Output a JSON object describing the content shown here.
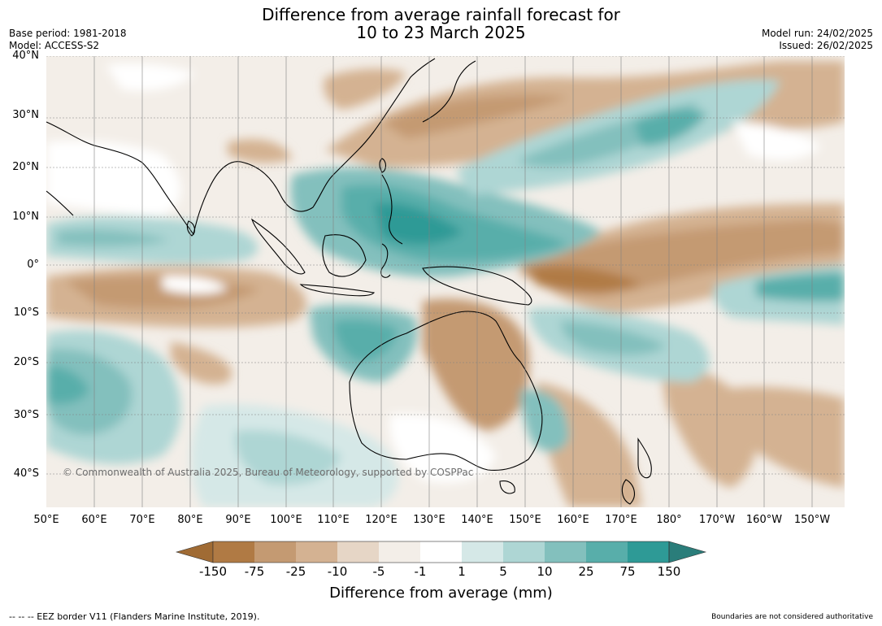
{
  "title": {
    "line1": "Difference from average rainfall forecast for",
    "line2": "10 to 23 March 2025"
  },
  "meta_left": {
    "base_period": "Base period: 1981-2018",
    "model": "Model: ACCESS-S2"
  },
  "meta_right": {
    "model_run": "Model run: 24/02/2025",
    "issued": "Issued: 26/02/2025"
  },
  "map": {
    "lat_labels": [
      "40°N",
      "30°N",
      "20°N",
      "10°N",
      "0°",
      "10°S",
      "20°S",
      "30°S",
      "40°S"
    ],
    "lon_labels": [
      "50°E",
      "60°E",
      "70°E",
      "80°E",
      "90°E",
      "100°E",
      "110°E",
      "120°E",
      "130°E",
      "140°E",
      "150°E",
      "160°E",
      "170°E",
      "180°",
      "170°W",
      "160°W",
      "150°W"
    ],
    "copyright": "© Commonwealth of Australia 2025, Bureau of Meteorology, supported by COSPPac"
  },
  "colorbar": {
    "tick_labels": [
      "-150",
      "-75",
      "-25",
      "-10",
      "-5",
      "-1",
      "1",
      "5",
      "10",
      "25",
      "75",
      "150"
    ],
    "colors": [
      "#a06b34",
      "#b07a44",
      "#c49a72",
      "#d4b292",
      "#e6d6c6",
      "#f3eee8",
      "#ffffff",
      "#d5e8e7",
      "#aed6d4",
      "#83c0bd",
      "#58aeaa",
      "#2e9a96",
      "#2a7d7a"
    ],
    "label": "Difference from average (mm)"
  },
  "footer": {
    "eez_legend": "--  --  -- EEZ border V11 (Flanders Marine Institute, 2019).",
    "disclaimer": "Boundaries are not considered authoritative"
  }
}
